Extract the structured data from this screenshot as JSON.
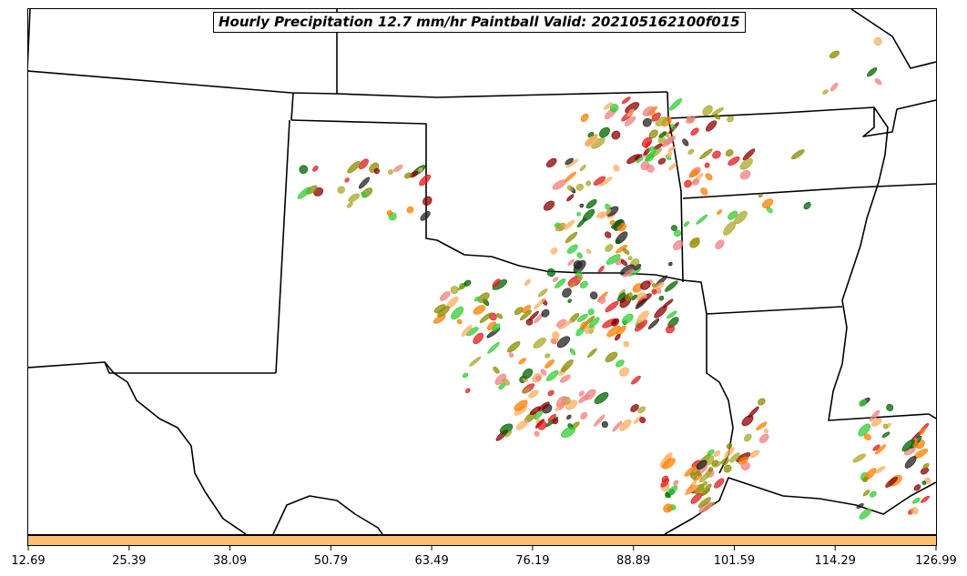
{
  "map": {
    "title": "Hourly Precipitation 12.7 mm/hr Paintball Valid: 202105162100f015",
    "colorbar": {
      "color": "#fdbf6f",
      "ticks": [
        "12.69",
        "25.39",
        "38.09",
        "50.79",
        "63.49",
        "76.19",
        "88.89",
        "101.59",
        "114.29",
        "126.99"
      ]
    },
    "member_colors": [
      "#e31a1c",
      "#ff7f00",
      "#33cc33",
      "#006400",
      "#8b0000",
      "#8b8b00",
      "#a8a828",
      "#222222",
      "#f08080",
      "#fdae61"
    ]
  }
}
